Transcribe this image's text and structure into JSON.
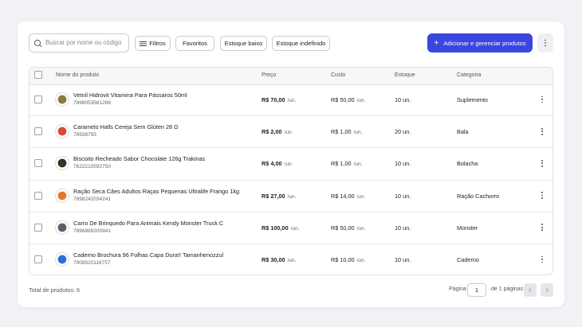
{
  "toolbar": {
    "search_placeholder": "Buscar por nome ou código",
    "filters": [
      "Filtros",
      "Favoritos",
      "Estoque baixo",
      "Estoque indefinido"
    ],
    "primary_button": "Adicionar e gerenciar produtos"
  },
  "table": {
    "headers": [
      "Nome do produto",
      "Preço",
      "Custo",
      "Estoque",
      "Categoria"
    ],
    "rows": [
      {
        "name": "Vetnil Hidrovit Vitamina Para Pássaros 50ml",
        "code": "7898053581286",
        "price": "R$ 70,00",
        "price_unit": "/un.",
        "cost": "R$ 50,00",
        "cost_unit": "/un.",
        "stock": "10 un.",
        "category": "Suplemento"
      },
      {
        "name": "Caramelo Halls Cereja Sem Glúten 28 G",
        "code": "78938793",
        "price": "R$ 2,00",
        "price_unit": "/un.",
        "cost": "R$ 1,00",
        "cost_unit": "/un.",
        "stock": "20 un.",
        "category": "Bala"
      },
      {
        "name": "Biscoito Recheado Sabor Chocolate 126g Trakinas",
        "code": "7622210592750",
        "price": "R$ 4,00",
        "price_unit": "/un.",
        "cost": "R$ 1,00",
        "cost_unit": "/un.",
        "stock": "10 un.",
        "category": "Bolacha"
      },
      {
        "name": "Ração Seca Cães Adultos Raças Pequenas Ultralife Frango 1kg",
        "code": "7898242034241",
        "price": "R$ 27,00",
        "price_unit": "/un.",
        "cost": "R$ 14,00",
        "cost_unit": "/un.",
        "stock": "10 un.",
        "category": "Ração Cachorro"
      },
      {
        "name": "Carro De Brinquedo Para Animais Kendy Monster Truck C",
        "code": "7896869200941",
        "price": "R$ 100,00",
        "price_unit": "/un.",
        "cost": "R$ 50,00",
        "cost_unit": "/un.",
        "stock": "10 un.",
        "category": "Monster"
      },
      {
        "name": "Caderno Brochura 96 Folhas Capa Dura!! Tamanhenozzul",
        "code": "7908520116757",
        "price": "R$ 30,00",
        "price_unit": "/un.",
        "cost": "R$ 10,00",
        "cost_unit": "/un.",
        "stock": "10 un.",
        "category": "Caderno"
      }
    ]
  },
  "footer": {
    "total": "Total de produtos: 6",
    "page_label": "Página",
    "page": 1,
    "page_of": "de 1 páginas"
  }
}
